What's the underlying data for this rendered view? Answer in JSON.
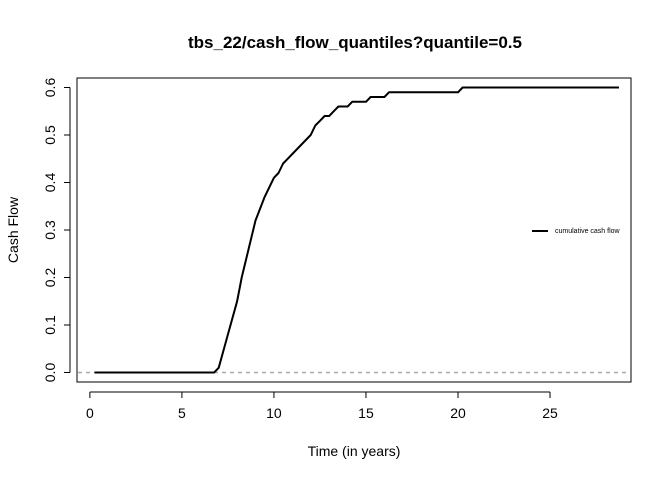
{
  "chart_data": {
    "type": "line",
    "title": "tbs_22/cash_flow_quantiles?quantile=0.5",
    "xlabel": "Time (in years)",
    "ylabel": "Cash Flow",
    "xlim": [
      -0.7,
      29.4
    ],
    "ylim": [
      -0.02,
      0.62
    ],
    "x_ticks": [
      0,
      5,
      10,
      15,
      20,
      25
    ],
    "x_tick_labels": [
      "0",
      "5",
      "10",
      "15",
      "20",
      "25"
    ],
    "y_ticks": [
      0.0,
      0.1,
      0.2,
      0.3,
      0.4,
      0.5,
      0.6
    ],
    "y_tick_labels": [
      "0.0",
      "0.1",
      "0.2",
      "0.3",
      "0.4",
      "0.5",
      "0.6"
    ],
    "grid": false,
    "legend_position": "right",
    "reference_line": {
      "y": 0,
      "style": "dashed",
      "color": "#aaaaaa"
    },
    "series": [
      {
        "name": "cumulative cash flow",
        "color": "#000000",
        "x": [
          0.25,
          6.5,
          6.75,
          7.0,
          7.5,
          8.0,
          8.25,
          8.5,
          8.75,
          9.0,
          9.25,
          9.5,
          9.75,
          10.0,
          10.25,
          10.5,
          10.75,
          11.0,
          11.5,
          12.0,
          12.25,
          12.5,
          12.75,
          13.0,
          13.25,
          13.5,
          13.75,
          14.0,
          14.25,
          14.5,
          15.0,
          15.25,
          15.5,
          16.0,
          16.25,
          19.0,
          20.0,
          20.25,
          28.75
        ],
        "values": [
          0.0,
          0.0,
          0.0,
          0.01,
          0.08,
          0.15,
          0.2,
          0.24,
          0.28,
          0.32,
          0.345,
          0.37,
          0.39,
          0.41,
          0.42,
          0.44,
          0.45,
          0.46,
          0.48,
          0.5,
          0.52,
          0.53,
          0.54,
          0.54,
          0.55,
          0.56,
          0.56,
          0.56,
          0.57,
          0.57,
          0.57,
          0.58,
          0.58,
          0.58,
          0.59,
          0.59,
          0.59,
          0.6,
          0.6
        ]
      }
    ]
  }
}
